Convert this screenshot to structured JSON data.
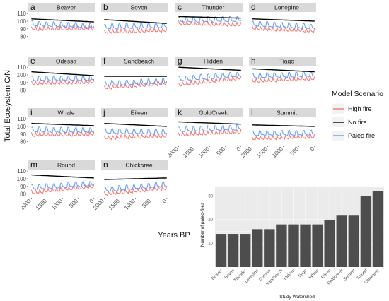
{
  "chart_data": [
    {
      "type": "line",
      "ylabel": "Total Ecosystem C/N",
      "xlabel": "Years BP",
      "x_ticks": [
        "2000",
        "1500",
        "1000",
        "500",
        "0"
      ],
      "y_ticks": [
        "80",
        "90",
        "100",
        "110"
      ],
      "xlim": [
        2100,
        -50
      ],
      "ylim": [
        75,
        112
      ],
      "legend": {
        "title": "Model Scenario",
        "position": "right",
        "entries": [
          {
            "name": "High fire",
            "color": "#f8766d"
          },
          {
            "name": "No fire",
            "color": "#000000"
          },
          {
            "name": "Paleo fire",
            "color": "#619cff"
          }
        ]
      },
      "panels": [
        {
          "letter": "a",
          "name": "Beaver",
          "no_fire": [
            103,
            99
          ],
          "paleo": [
            96,
            93
          ],
          "high": [
            90,
            91
          ]
        },
        {
          "letter": "b",
          "name": "Seven",
          "no_fire": [
            102,
            97
          ],
          "paleo": [
            92,
            94
          ],
          "high": [
            86,
            88
          ]
        },
        {
          "letter": "c",
          "name": "Thunder",
          "no_fire": [
            106,
            104
          ],
          "paleo": [
            101,
            102
          ],
          "high": [
            97,
            95
          ]
        },
        {
          "letter": "d",
          "name": "Lonepine",
          "no_fire": [
            103,
            100
          ],
          "paleo": [
            96,
            92
          ],
          "high": [
            91,
            87
          ]
        },
        {
          "letter": "e",
          "name": "Odessa",
          "no_fire": [
            104,
            99
          ],
          "paleo": [
            94,
            95
          ],
          "high": [
            89,
            91
          ]
        },
        {
          "letter": "f",
          "name": "Sandbeach",
          "no_fire": [
            98,
            98
          ],
          "paleo": [
            88,
            91
          ],
          "high": [
            83,
            89
          ]
        },
        {
          "letter": "g",
          "name": "Hidden",
          "no_fire": [
            110,
            106
          ],
          "paleo": [
            94,
            100
          ],
          "high": [
            87,
            96
          ]
        },
        {
          "letter": "h",
          "name": "Tiago",
          "no_fire": [
            108,
            104
          ],
          "paleo": [
            98,
            100
          ],
          "high": [
            92,
            95
          ]
        },
        {
          "letter": "i",
          "name": "Whale",
          "no_fire": [
            104,
            101
          ],
          "paleo": [
            95,
            94
          ],
          "high": [
            89,
            90
          ]
        },
        {
          "letter": "j",
          "name": "Eileen",
          "no_fire": [
            104,
            100
          ],
          "paleo": [
            93,
            92
          ],
          "high": [
            85,
            88
          ]
        },
        {
          "letter": "k",
          "name": "GoldCreek",
          "no_fire": [
            106,
            103
          ],
          "paleo": [
            95,
            98
          ],
          "high": [
            89,
            93
          ]
        },
        {
          "letter": "l",
          "name": "Summit",
          "no_fire": [
            102,
            100
          ],
          "paleo": [
            90,
            91
          ],
          "high": [
            84,
            87
          ]
        },
        {
          "letter": "m",
          "name": "Round",
          "no_fire": [
            105,
            101
          ],
          "paleo": [
            88,
            93
          ],
          "high": [
            82,
            90
          ]
        },
        {
          "letter": "n",
          "name": "Chickaree",
          "no_fire": [
            99,
            101
          ],
          "paleo": [
            85,
            92
          ],
          "high": [
            80,
            88
          ]
        }
      ]
    },
    {
      "type": "bar",
      "xlabel": "Study Watershed",
      "ylabel": "Number of paleo-fires",
      "categories": [
        "Beaver",
        "Seven",
        "Thunder",
        "Lonepine",
        "Odessa",
        "Sandbeach",
        "Hidden",
        "Tiago",
        "Whale",
        "Eileen",
        "GoldCreek",
        "Summit",
        "Round",
        "Chickaree"
      ],
      "values": [
        14,
        14,
        14,
        16,
        16,
        18,
        18,
        18,
        18,
        20,
        22,
        22,
        30,
        32
      ],
      "y_ticks": [
        "10",
        "20",
        "30"
      ],
      "ylim": [
        0,
        34
      ],
      "bar_color": "#4d4d4d"
    }
  ]
}
